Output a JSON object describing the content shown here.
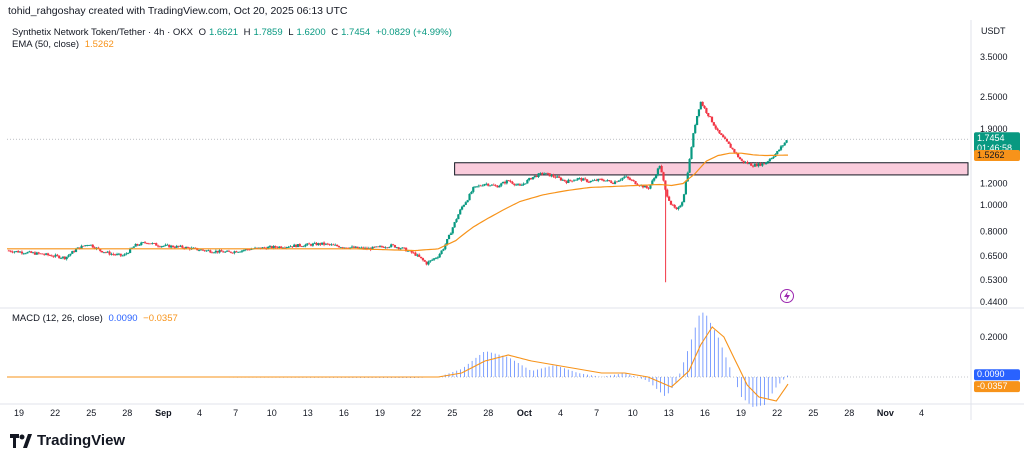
{
  "header": {
    "text": "tohid_rahgoshay created with TradingView.com, Oct 20, 2025 06:13 UTC"
  },
  "legend": {
    "symbol": "Synthetix Network Token/Tether · 4h · OKX",
    "o_label": "O",
    "o": "1.6621",
    "h_label": "H",
    "h": "1.7859",
    "l_label": "L",
    "l": "1.6200",
    "c_label": "C",
    "c": "1.7454",
    "change": "+0.0829 (+4.99%)",
    "ema_label": "EMA (50, close)",
    "ema_value": "1.5262",
    "macd_label": "MACD (12, 26, close)",
    "macd_value": "0.0090",
    "signal_value": "−0.0357"
  },
  "price_axis": {
    "currency": "USDT"
  },
  "tags": {
    "last_price": "1.7454",
    "countdown": "01:46:58",
    "ema": "1.5262",
    "macd": "0.0090",
    "signal": "-0.0357"
  },
  "colors": {
    "up": "#089981",
    "down": "#f23645",
    "ema": "#f7931a",
    "macd": "#2962ff",
    "zone_fill": "#f8bbd0",
    "zone_border": "#131722"
  },
  "branding": {
    "name": "TradingView"
  },
  "chart_data": {
    "type": "candlestick",
    "title": "Synthetix Network Token/Tether · 4h · OKX",
    "y_axis_scale": "log",
    "y_ticks": [
      3.5,
      2.5,
      1.9,
      1.5,
      1.2,
      1.0,
      0.8,
      0.65,
      0.53,
      0.44
    ],
    "x_ticks": [
      "19",
      "22",
      "25",
      "28",
      "Sep",
      "4",
      "7",
      "10",
      "13",
      "16",
      "19",
      "22",
      "25",
      "28",
      "Oct",
      "4",
      "7",
      "10",
      "13",
      "16",
      "19",
      "22",
      "25",
      "28",
      "Nov",
      "4"
    ],
    "price_path": [
      [
        0,
        0.68
      ],
      [
        3,
        0.66
      ],
      [
        5,
        0.64
      ],
      [
        6,
        0.69
      ],
      [
        7,
        0.72
      ],
      [
        8,
        0.68
      ],
      [
        9,
        0.66
      ],
      [
        10,
        0.65
      ],
      [
        11,
        0.71
      ],
      [
        12,
        0.73
      ],
      [
        13,
        0.71
      ],
      [
        15,
        0.7
      ],
      [
        17,
        0.68
      ],
      [
        19,
        0.67
      ],
      [
        21,
        0.69
      ],
      [
        23,
        0.7
      ],
      [
        25,
        0.71
      ],
      [
        27,
        0.72
      ],
      [
        29,
        0.7
      ],
      [
        31,
        0.69
      ],
      [
        33,
        0.71
      ],
      [
        34,
        0.69
      ],
      [
        35,
        0.66
      ],
      [
        36,
        0.61
      ],
      [
        37,
        0.65
      ],
      [
        37.5,
        0.7
      ],
      [
        38,
        0.78
      ],
      [
        38.5,
        0.88
      ],
      [
        39,
        0.98
      ],
      [
        39.5,
        1.05
      ],
      [
        40,
        1.15
      ],
      [
        41,
        1.2
      ],
      [
        42,
        1.17
      ],
      [
        43,
        1.23
      ],
      [
        44,
        1.17
      ],
      [
        45,
        1.26
      ],
      [
        46,
        1.31
      ],
      [
        47,
        1.27
      ],
      [
        48,
        1.22
      ],
      [
        49,
        1.25
      ],
      [
        50,
        1.22
      ],
      [
        51,
        1.24
      ],
      [
        52,
        1.21
      ],
      [
        53,
        1.27
      ],
      [
        54,
        1.2
      ],
      [
        55,
        1.15
      ],
      [
        55.5,
        1.25
      ],
      [
        56,
        1.4
      ],
      [
        56.5,
        1.12
      ],
      [
        57,
        1.0
      ],
      [
        57.5,
        0.95
      ],
      [
        58,
        1.05
      ],
      [
        58.5,
        1.4
      ],
      [
        59,
        1.95
      ],
      [
        59.5,
        2.4
      ],
      [
        60,
        2.2
      ],
      [
        61,
        1.85
      ],
      [
        62,
        1.65
      ],
      [
        63,
        1.45
      ],
      [
        64,
        1.4
      ],
      [
        65,
        1.42
      ],
      [
        66,
        1.55
      ],
      [
        67,
        1.75
      ]
    ],
    "ema_path": [
      [
        0,
        0.69
      ],
      [
        10,
        0.69
      ],
      [
        20,
        0.69
      ],
      [
        30,
        0.69
      ],
      [
        35,
        0.68
      ],
      [
        37,
        0.69
      ],
      [
        38.5,
        0.74
      ],
      [
        40,
        0.83
      ],
      [
        42,
        0.93
      ],
      [
        44,
        1.03
      ],
      [
        46,
        1.09
      ],
      [
        48,
        1.13
      ],
      [
        50,
        1.16
      ],
      [
        52,
        1.17
      ],
      [
        54,
        1.18
      ],
      [
        56,
        1.19
      ],
      [
        57,
        1.18
      ],
      [
        58,
        1.2
      ],
      [
        59,
        1.3
      ],
      [
        60,
        1.45
      ],
      [
        61,
        1.52
      ],
      [
        62,
        1.55
      ],
      [
        63,
        1.55
      ],
      [
        64,
        1.53
      ],
      [
        65,
        1.52
      ],
      [
        67,
        1.5262
      ]
    ],
    "wick_spike": {
      "index": 56.5,
      "low": 0.52
    },
    "zone": {
      "from_index": 38.4,
      "upper_price": 1.43,
      "lower_price": 1.29
    },
    "macd": {
      "macd_path": [
        [
          0,
          0.0
        ],
        [
          35,
          -0.005
        ],
        [
          37,
          0.0
        ],
        [
          39,
          0.04
        ],
        [
          41,
          0.13
        ],
        [
          43,
          0.1
        ],
        [
          45,
          0.03
        ],
        [
          47,
          0.06
        ],
        [
          49,
          0.02
        ],
        [
          51,
          0.0
        ],
        [
          53,
          0.02
        ],
        [
          55,
          -0.02
        ],
        [
          56.5,
          -0.1
        ],
        [
          57.5,
          -0.02
        ],
        [
          58.5,
          0.15
        ],
        [
          59.5,
          0.33
        ],
        [
          60,
          0.31
        ],
        [
          61,
          0.2
        ],
        [
          62,
          0.05
        ],
        [
          63,
          -0.1
        ],
        [
          64,
          -0.15
        ],
        [
          65,
          -0.14
        ],
        [
          66,
          -0.05
        ],
        [
          67,
          0.009
        ]
      ],
      "signal_path": [
        [
          0,
          0.0
        ],
        [
          37,
          0.0
        ],
        [
          39,
          0.02
        ],
        [
          41,
          0.08
        ],
        [
          43,
          0.11
        ],
        [
          45,
          0.08
        ],
        [
          47,
          0.06
        ],
        [
          49,
          0.04
        ],
        [
          51,
          0.02
        ],
        [
          53,
          0.02
        ],
        [
          55,
          0.0
        ],
        [
          57,
          -0.05
        ],
        [
          58.5,
          0.03
        ],
        [
          59.5,
          0.16
        ],
        [
          60.5,
          0.25
        ],
        [
          61.5,
          0.2
        ],
        [
          62.5,
          0.08
        ],
        [
          63.5,
          -0.04
        ],
        [
          64.5,
          -0.1
        ],
        [
          66,
          -0.12
        ],
        [
          67,
          -0.0357
        ]
      ],
      "y_ticks": [
        0.2
      ]
    }
  }
}
